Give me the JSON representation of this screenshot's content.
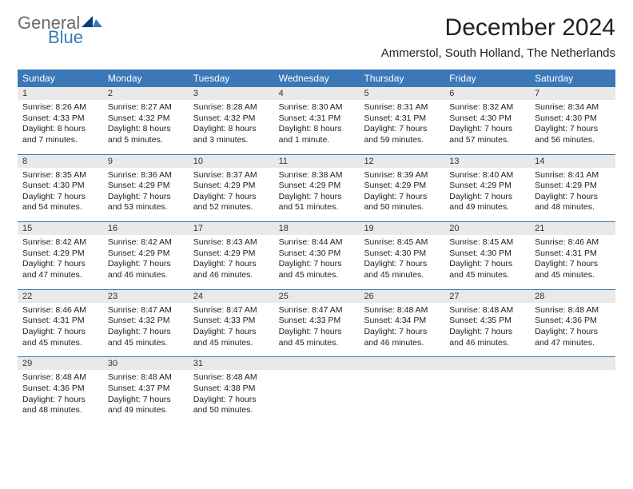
{
  "logo": {
    "general": "General",
    "blue": "Blue"
  },
  "title": "December 2024",
  "subtitle": "Ammerstol, South Holland, The Netherlands",
  "colors": {
    "brand_blue": "#3a78b8",
    "header_bg": "#3a78b8",
    "daynum_bg": "#e9e9e9",
    "text": "#222222",
    "logo_gray": "#6a6a6a"
  },
  "days_of_week": [
    "Sunday",
    "Monday",
    "Tuesday",
    "Wednesday",
    "Thursday",
    "Friday",
    "Saturday"
  ],
  "weeks": [
    [
      {
        "n": "1",
        "sunrise": "Sunrise: 8:26 AM",
        "sunset": "Sunset: 4:33 PM",
        "daylight": "Daylight: 8 hours and 7 minutes."
      },
      {
        "n": "2",
        "sunrise": "Sunrise: 8:27 AM",
        "sunset": "Sunset: 4:32 PM",
        "daylight": "Daylight: 8 hours and 5 minutes."
      },
      {
        "n": "3",
        "sunrise": "Sunrise: 8:28 AM",
        "sunset": "Sunset: 4:32 PM",
        "daylight": "Daylight: 8 hours and 3 minutes."
      },
      {
        "n": "4",
        "sunrise": "Sunrise: 8:30 AM",
        "sunset": "Sunset: 4:31 PM",
        "daylight": "Daylight: 8 hours and 1 minute."
      },
      {
        "n": "5",
        "sunrise": "Sunrise: 8:31 AM",
        "sunset": "Sunset: 4:31 PM",
        "daylight": "Daylight: 7 hours and 59 minutes."
      },
      {
        "n": "6",
        "sunrise": "Sunrise: 8:32 AM",
        "sunset": "Sunset: 4:30 PM",
        "daylight": "Daylight: 7 hours and 57 minutes."
      },
      {
        "n": "7",
        "sunrise": "Sunrise: 8:34 AM",
        "sunset": "Sunset: 4:30 PM",
        "daylight": "Daylight: 7 hours and 56 minutes."
      }
    ],
    [
      {
        "n": "8",
        "sunrise": "Sunrise: 8:35 AM",
        "sunset": "Sunset: 4:30 PM",
        "daylight": "Daylight: 7 hours and 54 minutes."
      },
      {
        "n": "9",
        "sunrise": "Sunrise: 8:36 AM",
        "sunset": "Sunset: 4:29 PM",
        "daylight": "Daylight: 7 hours and 53 minutes."
      },
      {
        "n": "10",
        "sunrise": "Sunrise: 8:37 AM",
        "sunset": "Sunset: 4:29 PM",
        "daylight": "Daylight: 7 hours and 52 minutes."
      },
      {
        "n": "11",
        "sunrise": "Sunrise: 8:38 AM",
        "sunset": "Sunset: 4:29 PM",
        "daylight": "Daylight: 7 hours and 51 minutes."
      },
      {
        "n": "12",
        "sunrise": "Sunrise: 8:39 AM",
        "sunset": "Sunset: 4:29 PM",
        "daylight": "Daylight: 7 hours and 50 minutes."
      },
      {
        "n": "13",
        "sunrise": "Sunrise: 8:40 AM",
        "sunset": "Sunset: 4:29 PM",
        "daylight": "Daylight: 7 hours and 49 minutes."
      },
      {
        "n": "14",
        "sunrise": "Sunrise: 8:41 AM",
        "sunset": "Sunset: 4:29 PM",
        "daylight": "Daylight: 7 hours and 48 minutes."
      }
    ],
    [
      {
        "n": "15",
        "sunrise": "Sunrise: 8:42 AM",
        "sunset": "Sunset: 4:29 PM",
        "daylight": "Daylight: 7 hours and 47 minutes."
      },
      {
        "n": "16",
        "sunrise": "Sunrise: 8:42 AM",
        "sunset": "Sunset: 4:29 PM",
        "daylight": "Daylight: 7 hours and 46 minutes."
      },
      {
        "n": "17",
        "sunrise": "Sunrise: 8:43 AM",
        "sunset": "Sunset: 4:29 PM",
        "daylight": "Daylight: 7 hours and 46 minutes."
      },
      {
        "n": "18",
        "sunrise": "Sunrise: 8:44 AM",
        "sunset": "Sunset: 4:30 PM",
        "daylight": "Daylight: 7 hours and 45 minutes."
      },
      {
        "n": "19",
        "sunrise": "Sunrise: 8:45 AM",
        "sunset": "Sunset: 4:30 PM",
        "daylight": "Daylight: 7 hours and 45 minutes."
      },
      {
        "n": "20",
        "sunrise": "Sunrise: 8:45 AM",
        "sunset": "Sunset: 4:30 PM",
        "daylight": "Daylight: 7 hours and 45 minutes."
      },
      {
        "n": "21",
        "sunrise": "Sunrise: 8:46 AM",
        "sunset": "Sunset: 4:31 PM",
        "daylight": "Daylight: 7 hours and 45 minutes."
      }
    ],
    [
      {
        "n": "22",
        "sunrise": "Sunrise: 8:46 AM",
        "sunset": "Sunset: 4:31 PM",
        "daylight": "Daylight: 7 hours and 45 minutes."
      },
      {
        "n": "23",
        "sunrise": "Sunrise: 8:47 AM",
        "sunset": "Sunset: 4:32 PM",
        "daylight": "Daylight: 7 hours and 45 minutes."
      },
      {
        "n": "24",
        "sunrise": "Sunrise: 8:47 AM",
        "sunset": "Sunset: 4:33 PM",
        "daylight": "Daylight: 7 hours and 45 minutes."
      },
      {
        "n": "25",
        "sunrise": "Sunrise: 8:47 AM",
        "sunset": "Sunset: 4:33 PM",
        "daylight": "Daylight: 7 hours and 45 minutes."
      },
      {
        "n": "26",
        "sunrise": "Sunrise: 8:48 AM",
        "sunset": "Sunset: 4:34 PM",
        "daylight": "Daylight: 7 hours and 46 minutes."
      },
      {
        "n": "27",
        "sunrise": "Sunrise: 8:48 AM",
        "sunset": "Sunset: 4:35 PM",
        "daylight": "Daylight: 7 hours and 46 minutes."
      },
      {
        "n": "28",
        "sunrise": "Sunrise: 8:48 AM",
        "sunset": "Sunset: 4:36 PM",
        "daylight": "Daylight: 7 hours and 47 minutes."
      }
    ],
    [
      {
        "n": "29",
        "sunrise": "Sunrise: 8:48 AM",
        "sunset": "Sunset: 4:36 PM",
        "daylight": "Daylight: 7 hours and 48 minutes."
      },
      {
        "n": "30",
        "sunrise": "Sunrise: 8:48 AM",
        "sunset": "Sunset: 4:37 PM",
        "daylight": "Daylight: 7 hours and 49 minutes."
      },
      {
        "n": "31",
        "sunrise": "Sunrise: 8:48 AM",
        "sunset": "Sunset: 4:38 PM",
        "daylight": "Daylight: 7 hours and 50 minutes."
      },
      {
        "empty": true
      },
      {
        "empty": true
      },
      {
        "empty": true
      },
      {
        "empty": true
      }
    ]
  ]
}
